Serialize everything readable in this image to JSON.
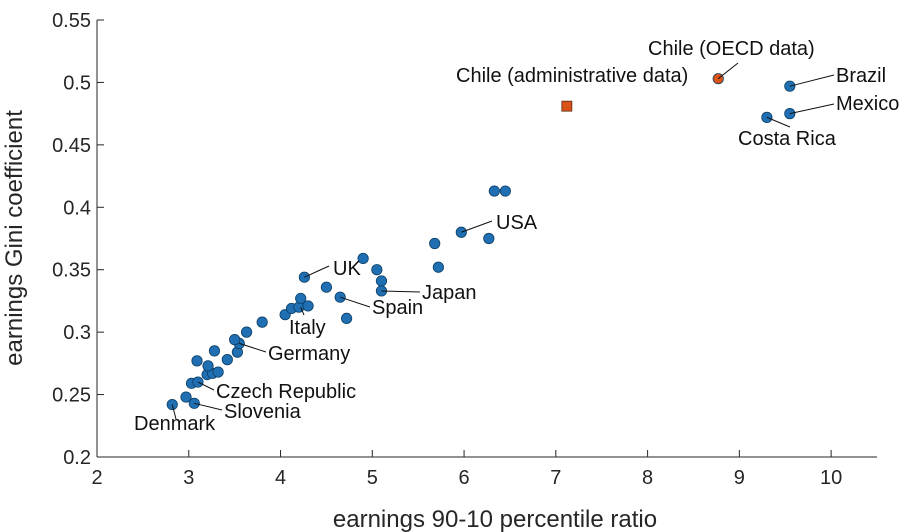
{
  "chart_data": {
    "type": "scatter",
    "xlabel": "earnings 90-10 percentile ratio",
    "ylabel": "earnings Gini coefficient",
    "xlim": [
      2,
      10.5
    ],
    "ylim": [
      0.2,
      0.55
    ],
    "x_ticks": [
      2,
      3,
      4,
      5,
      6,
      7,
      8,
      9,
      10
    ],
    "y_ticks": [
      0.2,
      0.25,
      0.3,
      0.35,
      0.4,
      0.45,
      0.5,
      0.55
    ],
    "x_tick_labels": [
      "2",
      "3",
      "4",
      "5",
      "6",
      "7",
      "8",
      "9",
      "10"
    ],
    "y_tick_labels": [
      "0.2",
      "0.25",
      "0.3",
      "0.35",
      "0.4",
      "0.45",
      "0.5",
      "0.55"
    ],
    "grid": false,
    "colors": {
      "oecd": "#1f6fb2",
      "chile_oecd": "#d95319",
      "chile_admin": "#d95319"
    },
    "series": [
      {
        "key": "oecd",
        "marker": "circle",
        "points": [
          {
            "x": 2.82,
            "y": 0.242
          },
          {
            "x": 2.97,
            "y": 0.248
          },
          {
            "x": 3.06,
            "y": 0.243
          },
          {
            "x": 3.03,
            "y": 0.259
          },
          {
            "x": 3.1,
            "y": 0.26
          },
          {
            "x": 3.2,
            "y": 0.266
          },
          {
            "x": 3.26,
            "y": 0.267
          },
          {
            "x": 3.32,
            "y": 0.268
          },
          {
            "x": 3.21,
            "y": 0.273
          },
          {
            "x": 3.09,
            "y": 0.277
          },
          {
            "x": 3.42,
            "y": 0.278
          },
          {
            "x": 3.28,
            "y": 0.285
          },
          {
            "x": 3.53,
            "y": 0.284
          },
          {
            "x": 3.55,
            "y": 0.291
          },
          {
            "x": 3.5,
            "y": 0.294
          },
          {
            "x": 3.63,
            "y": 0.3
          },
          {
            "x": 3.8,
            "y": 0.308
          },
          {
            "x": 4.05,
            "y": 0.314
          },
          {
            "x": 4.12,
            "y": 0.319
          },
          {
            "x": 4.2,
            "y": 0.32
          },
          {
            "x": 4.3,
            "y": 0.321
          },
          {
            "x": 4.22,
            "y": 0.327
          },
          {
            "x": 4.26,
            "y": 0.344
          },
          {
            "x": 4.5,
            "y": 0.336
          },
          {
            "x": 4.65,
            "y": 0.328
          },
          {
            "x": 4.72,
            "y": 0.311
          },
          {
            "x": 4.9,
            "y": 0.359
          },
          {
            "x": 5.05,
            "y": 0.35
          },
          {
            "x": 5.1,
            "y": 0.341
          },
          {
            "x": 5.1,
            "y": 0.333
          },
          {
            "x": 5.68,
            "y": 0.371
          },
          {
            "x": 5.72,
            "y": 0.352
          },
          {
            "x": 5.97,
            "y": 0.38
          },
          {
            "x": 6.27,
            "y": 0.375
          },
          {
            "x": 6.33,
            "y": 0.413
          },
          {
            "x": 6.45,
            "y": 0.413
          },
          {
            "x": 9.3,
            "y": 0.472
          },
          {
            "x": 9.55,
            "y": 0.475
          },
          {
            "x": 9.55,
            "y": 0.497
          }
        ]
      },
      {
        "key": "chile_oecd",
        "marker": "circle",
        "points": [
          {
            "x": 8.77,
            "y": 0.503
          }
        ]
      },
      {
        "key": "chile_admin",
        "marker": "square",
        "points": [
          {
            "x": 7.12,
            "y": 0.481
          }
        ]
      }
    ],
    "annotations": [
      {
        "text": "Chile (OECD data)",
        "point": [
          8.77,
          0.503
        ]
      },
      {
        "text": "Chile (administrative data)",
        "point": [
          7.12,
          0.481
        ]
      },
      {
        "text": "Brazil",
        "point": [
          9.55,
          0.497
        ]
      },
      {
        "text": "Mexico",
        "point": [
          9.55,
          0.475
        ]
      },
      {
        "text": "Costa Rica",
        "point": [
          9.3,
          0.472
        ]
      },
      {
        "text": "USA",
        "point": [
          5.97,
          0.38
        ]
      },
      {
        "text": "UK",
        "point": [
          4.26,
          0.344
        ]
      },
      {
        "text": "Japan",
        "point": [
          5.1,
          0.333
        ]
      },
      {
        "text": "Spain",
        "point": [
          4.65,
          0.328
        ]
      },
      {
        "text": "Italy",
        "point": [
          4.22,
          0.32
        ]
      },
      {
        "text": "Germany",
        "point": [
          3.55,
          0.291
        ]
      },
      {
        "text": "Czech Republic",
        "point": [
          3.1,
          0.26
        ]
      },
      {
        "text": "Slovenia",
        "point": [
          3.06,
          0.243
        ]
      },
      {
        "text": "Denmark",
        "point": [
          2.82,
          0.242
        ]
      }
    ]
  }
}
